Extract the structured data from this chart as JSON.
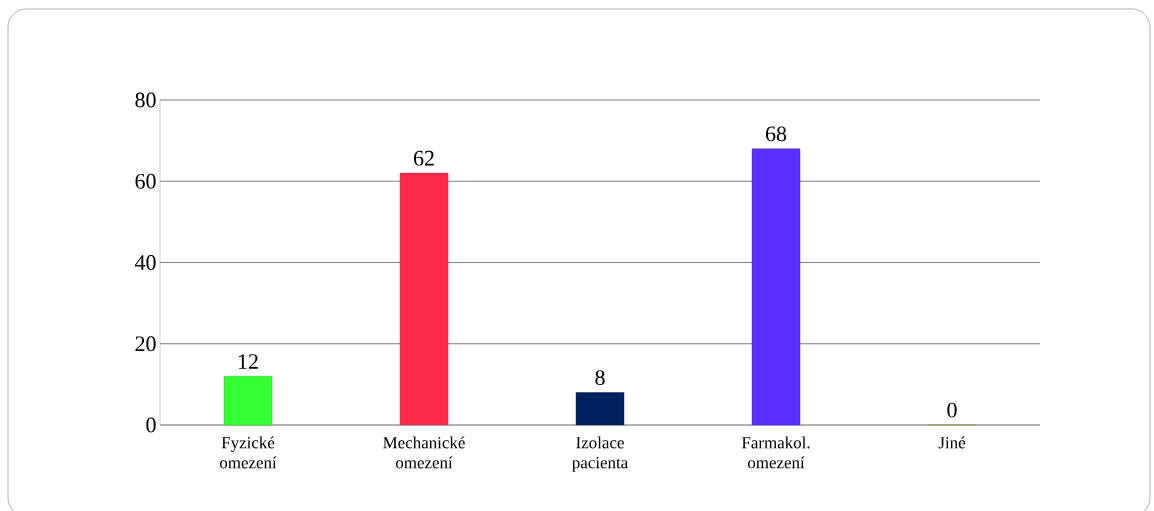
{
  "chart_data": {
    "type": "bar",
    "categories": [
      "Fyzické omezení",
      "Mechanické omezení",
      "Izolace pacienta",
      "Farmakol. omezení",
      "Jiné"
    ],
    "values": [
      12,
      62,
      8,
      68,
      0
    ],
    "colors": [
      "#33ff33",
      "#ff2a4a",
      "#002060",
      "#5b2fff",
      "#cccc00"
    ],
    "ylim": [
      0,
      80
    ],
    "yticks": [
      0,
      20,
      40,
      60,
      80
    ],
    "grid": "y",
    "data_labels": true
  }
}
